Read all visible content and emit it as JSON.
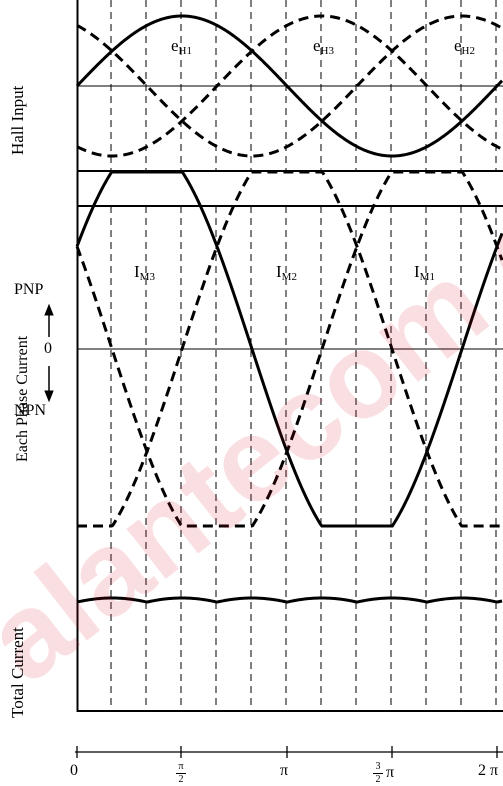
{
  "panels": {
    "hall_input": {
      "label": "Hall Input",
      "curves": [
        {
          "name": "eH1",
          "base": "e",
          "sub": "H1",
          "style": "solid"
        },
        {
          "name": "eH3",
          "base": "e",
          "sub": "H3",
          "style": "dashed"
        },
        {
          "name": "eH2",
          "base": "e",
          "sub": "H2",
          "style": "dashed"
        }
      ]
    },
    "phase_current": {
      "label": "Each Phase Current",
      "pnp_label": "PNP",
      "zero_label": "0",
      "npn_label": "NPN",
      "curves": [
        {
          "name": "IM3",
          "base": "I",
          "sub": "M3",
          "style": "solid"
        },
        {
          "name": "IM2",
          "base": "I",
          "sub": "M2",
          "style": "dashed"
        },
        {
          "name": "IM1",
          "base": "I",
          "sub": "M1",
          "style": "dashed"
        }
      ]
    },
    "total_current": {
      "label": "Total Current"
    }
  },
  "x_axis": {
    "ticks": [
      "0",
      "π/2",
      "π",
      "3/2 π",
      "2 π"
    ],
    "tick_0": "0",
    "tick_half_pi_num": "π",
    "tick_half_pi_den": "2",
    "tick_pi": "π",
    "tick_3half_num": "3",
    "tick_3half_den": "2",
    "tick_3half_sym": "π",
    "tick_2pi": "2 π"
  },
  "watermark_text": "alantecom contro",
  "colors": {
    "line": "#000000",
    "watermark": "#e0152b"
  }
}
